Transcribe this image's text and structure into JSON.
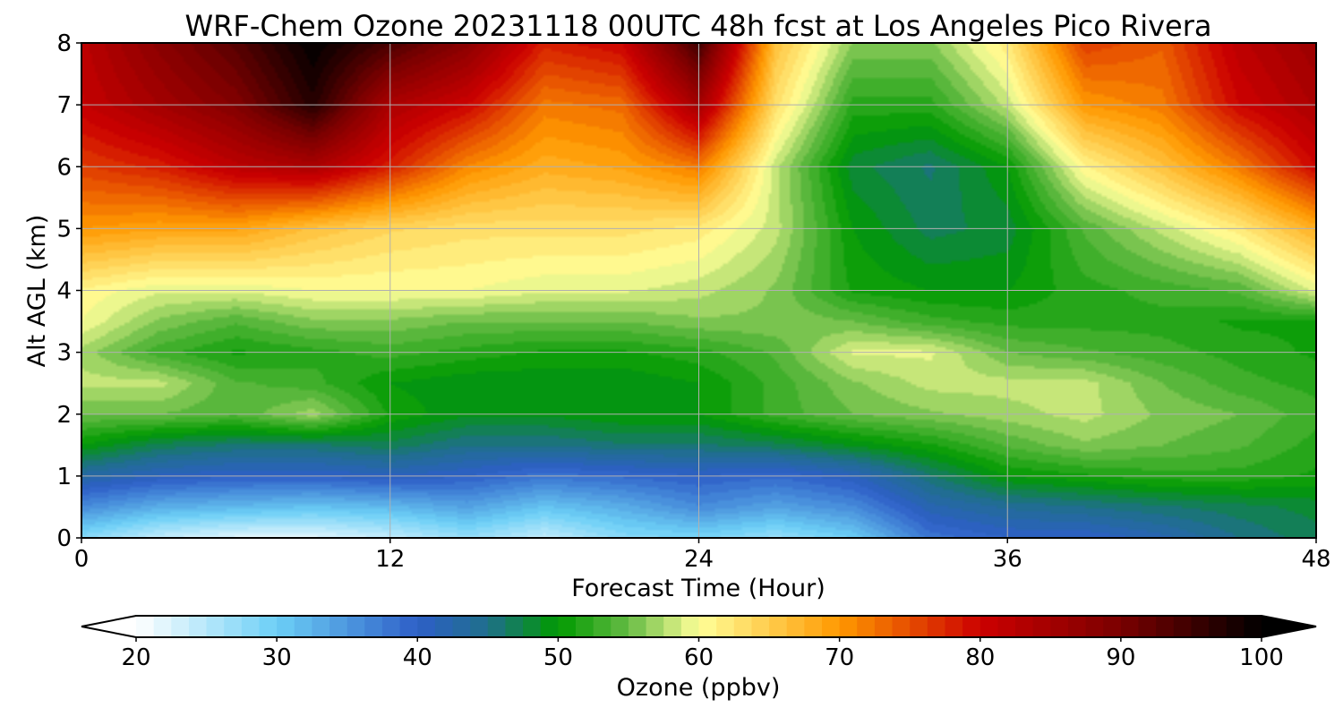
{
  "chart_data": {
    "type": "heatmap",
    "title": "WRF-Chem Ozone  20231118 00UTC 48h fcst at Los Angeles Pico Rivera",
    "xlabel": "Forecast Time (Hour)",
    "ylabel": "Alt AGL (km)",
    "x_ticks": [
      0,
      12,
      24,
      36,
      48
    ],
    "y_ticks": [
      0,
      1,
      2,
      3,
      4,
      5,
      6,
      7,
      8
    ],
    "xlim": [
      0,
      48
    ],
    "ylim": [
      0,
      8
    ],
    "grid": true,
    "colorbar": {
      "label": "Ozone  (ppbv)",
      "ticks": [
        20,
        30,
        40,
        50,
        60,
        70,
        80,
        90,
        100
      ],
      "range": [
        20,
        100
      ],
      "extend": "both",
      "stops": [
        {
          "value": 20,
          "color": "#ffffff"
        },
        {
          "value": 30,
          "color": "#6ccff6"
        },
        {
          "value": 40,
          "color": "#2e5fc7"
        },
        {
          "value": 45,
          "color": "#1f6f8b"
        },
        {
          "value": 50,
          "color": "#009a00"
        },
        {
          "value": 55,
          "color": "#66bb44"
        },
        {
          "value": 60,
          "color": "#ffff99"
        },
        {
          "value": 70,
          "color": "#ff9900"
        },
        {
          "value": 80,
          "color": "#cc0000"
        },
        {
          "value": 90,
          "color": "#7a0000"
        },
        {
          "value": 100,
          "color": "#000000"
        }
      ]
    },
    "x": [
      0,
      3,
      6,
      9,
      12,
      15,
      18,
      21,
      24,
      27,
      30,
      33,
      36,
      39,
      42,
      45,
      48
    ],
    "y": [
      0,
      0.5,
      1,
      1.5,
      2,
      2.5,
      3,
      3.5,
      4,
      5,
      6,
      7,
      8
    ],
    "z": [
      [
        28,
        24,
        22,
        22,
        24,
        27,
        24,
        28,
        29,
        27,
        30,
        38,
        40,
        40,
        42,
        45,
        47
      ],
      [
        36,
        33,
        32,
        31,
        32,
        34,
        31,
        33,
        36,
        34,
        36,
        42,
        44,
        45,
        46,
        47,
        48
      ],
      [
        43,
        41,
        40,
        40,
        41,
        40,
        38,
        39,
        40,
        39,
        41,
        46,
        50,
        51,
        52,
        52,
        51
      ],
      [
        50,
        47,
        46,
        46,
        47,
        45,
        45,
        46,
        46,
        47,
        49,
        51,
        54,
        56,
        55,
        54,
        52
      ],
      [
        55,
        55,
        54,
        57,
        51,
        49,
        49,
        50,
        50,
        53,
        55,
        56,
        57,
        58,
        56,
        55,
        53
      ],
      [
        58,
        58,
        54,
        53,
        50,
        49,
        49,
        49,
        50,
        53,
        56,
        58,
        58,
        58,
        55,
        53,
        52
      ],
      [
        57,
        53,
        51,
        52,
        53,
        52,
        51,
        51,
        52,
        54,
        59,
        59,
        55,
        54,
        53,
        52,
        51
      ],
      [
        60,
        56,
        54,
        56,
        56,
        55,
        55,
        55,
        56,
        56,
        55,
        53,
        52,
        52,
        52,
        51,
        51
      ],
      [
        61,
        59,
        59,
        60,
        60,
        60,
        59,
        59,
        58,
        56,
        51,
        50,
        50,
        52,
        53,
        54,
        59
      ],
      [
        70,
        69,
        69,
        66,
        64,
        63,
        63,
        63,
        62,
        58,
        50,
        47,
        48,
        54,
        58,
        62,
        68
      ],
      [
        76,
        78,
        82,
        84,
        78,
        71,
        68,
        69,
        72,
        58,
        48,
        46,
        50,
        61,
        66,
        72,
        80
      ],
      [
        81,
        85,
        89,
        97,
        84,
        80,
        72,
        73,
        85,
        63,
        52,
        52,
        58,
        70,
        72,
        80,
        84
      ],
      [
        82,
        88,
        93,
        100,
        94,
        88,
        78,
        80,
        95,
        66,
        56,
        56,
        62,
        76,
        74,
        82,
        86
      ]
    ]
  }
}
